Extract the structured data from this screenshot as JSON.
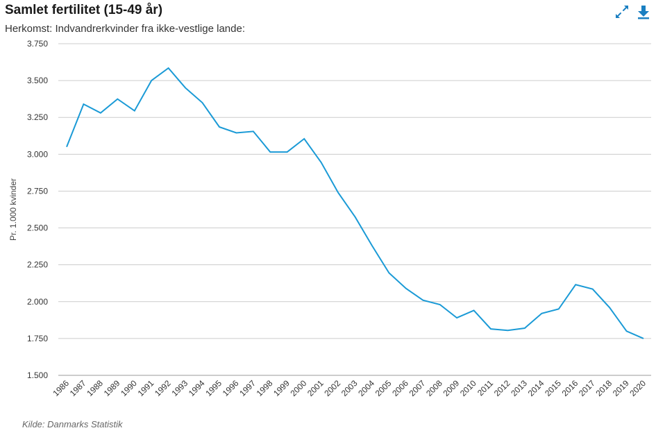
{
  "header": {
    "title": "Samlet fertilitet (15-49 år)",
    "subtitle": "Herkomst: Indvandrerkvinder fra ikke-vestlige lande:",
    "expand_icon": "expand-arrows-icon",
    "download_icon": "download-arrow-icon"
  },
  "footer": {
    "source": "Kilde: Danmarks Statistik"
  },
  "colors": {
    "line": "#1a9ad6",
    "grid": "#cccccc",
    "icon": "#1a7fc1"
  },
  "chart_data": {
    "type": "line",
    "ylabel": "Pr. 1.000 kvinder",
    "ylim": [
      1500,
      3750
    ],
    "yticks": [
      1500,
      1750,
      2000,
      2250,
      2500,
      2750,
      3000,
      3250,
      3500,
      3750
    ],
    "ytick_labels": [
      "1.500",
      "1.750",
      "2.000",
      "2.250",
      "2.500",
      "2.750",
      "3.000",
      "3.250",
      "3.500",
      "3.750"
    ],
    "grid": true,
    "categories": [
      "1986",
      "1987",
      "1988",
      "1989",
      "1990",
      "1991",
      "1992",
      "1993",
      "1994",
      "1995",
      "1996",
      "1997",
      "1998",
      "1999",
      "2000",
      "2001",
      "2002",
      "2003",
      "2004",
      "2005",
      "2006",
      "2007",
      "2008",
      "2009",
      "2010",
      "2011",
      "2012",
      "2013",
      "2014",
      "2015",
      "2016",
      "2017",
      "2018",
      "2019",
      "2020"
    ],
    "series": [
      {
        "values": [
          3050,
          3340,
          3280,
          3375,
          3295,
          3500,
          3585,
          3450,
          3350,
          3185,
          3145,
          3155,
          3015,
          3015,
          3105,
          2945,
          2740,
          2575,
          2380,
          2195,
          2090,
          2010,
          1980,
          1890,
          1940,
          1815,
          1805,
          1820,
          1920,
          1950,
          2115,
          2085,
          1960,
          1800,
          1750
        ]
      }
    ]
  }
}
